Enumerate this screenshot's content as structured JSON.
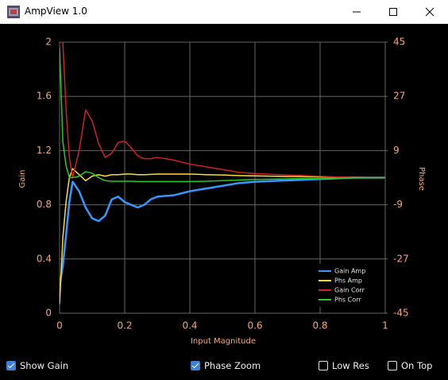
{
  "window": {
    "title": "AmpView 1.0"
  },
  "chart_data": {
    "type": "line",
    "xlabel": "Input Magnitude",
    "ylabel": "Gain",
    "y2label": "Phase",
    "x": [
      0,
      0.01,
      0.02,
      0.03,
      0.04,
      0.06,
      0.08,
      0.1,
      0.12,
      0.14,
      0.16,
      0.18,
      0.2,
      0.22,
      0.24,
      0.26,
      0.28,
      0.3,
      0.35,
      0.4,
      0.45,
      0.5,
      0.55,
      0.6,
      0.7,
      0.8,
      0.9,
      1
    ],
    "series": [
      {
        "name": "Gain Amp",
        "color": "#3399ff",
        "axis": "y",
        "values": [
          0.2,
          0.35,
          0.58,
          0.82,
          0.97,
          0.9,
          0.78,
          0.7,
          0.68,
          0.72,
          0.84,
          0.86,
          0.82,
          0.8,
          0.78,
          0.8,
          0.84,
          0.86,
          0.87,
          0.9,
          0.92,
          0.94,
          0.96,
          0.97,
          0.98,
          0.99,
          1.0,
          1.0
        ]
      },
      {
        "name": "Phs Amp",
        "color": "#ffdd33",
        "axis": "y2",
        "values": [
          -42,
          -20,
          -8,
          0,
          3,
          1,
          -1,
          0.5,
          1,
          0.5,
          1,
          1,
          1.2,
          1.2,
          1,
          1,
          1.1,
          1.2,
          1.2,
          1.2,
          1,
          0.9,
          0.7,
          0.6,
          0.4,
          0.3,
          0.1,
          0
        ]
      },
      {
        "name": "Gain Corr",
        "color": "#cc2222",
        "axis": "y",
        "values": [
          null,
          2.0,
          1.5,
          1.15,
          1.0,
          1.2,
          1.5,
          1.42,
          1.25,
          1.15,
          1.18,
          1.26,
          1.27,
          1.22,
          1.16,
          1.14,
          1.14,
          1.15,
          1.13,
          1.1,
          1.08,
          1.06,
          1.04,
          1.03,
          1.02,
          1.01,
          1.0,
          1.0
        ]
      },
      {
        "name": "Phs Corr",
        "color": "#22cc22",
        "axis": "y2",
        "values": [
          43,
          12,
          4,
          0,
          0,
          0.5,
          2,
          1.5,
          0,
          -1,
          -1.2,
          -1.2,
          -1.2,
          -1.2,
          -1.3,
          -1.3,
          -1.3,
          -1.3,
          -1.3,
          -1.3,
          -1.2,
          -1,
          -0.8,
          -0.6,
          -0.4,
          -0.2,
          -0.1,
          0
        ]
      }
    ],
    "xlim": [
      0,
      1
    ],
    "xticks": [
      0,
      0.2,
      0.4,
      0.6,
      0.8,
      1
    ],
    "ylim": [
      0,
      2
    ],
    "yticks": [
      0,
      0.4,
      0.8,
      1.2,
      1.6,
      2
    ],
    "y2lim": [
      -45,
      45
    ],
    "y2ticks": [
      -45,
      -27,
      -9,
      9,
      27,
      45
    ],
    "grid": true,
    "legend": "lower right"
  },
  "controls": [
    {
      "label": "Show Gain",
      "checked": true
    },
    {
      "label": "Phase Zoom",
      "checked": true
    },
    {
      "label": "Low Res",
      "checked": false
    },
    {
      "label": "On Top",
      "checked": false
    }
  ]
}
